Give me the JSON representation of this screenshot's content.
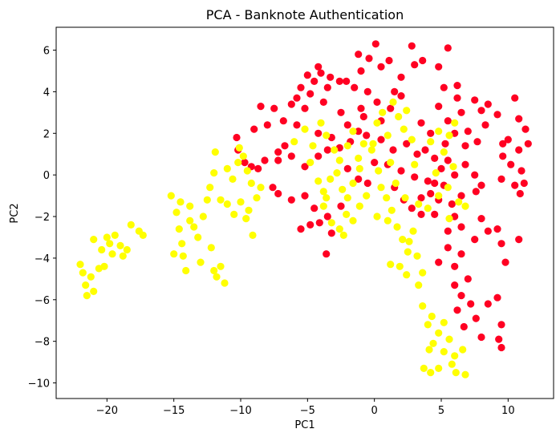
{
  "chart_data": {
    "type": "scatter",
    "title": "PCA - Banknote Authentication",
    "xlabel": "PC1",
    "ylabel": "PC2",
    "xlim": [
      -23.8,
      13.4
    ],
    "ylim": [
      -10.75,
      7.1
    ],
    "xticks": [
      -20,
      -15,
      -10,
      -5,
      0,
      5,
      10
    ],
    "yticks": [
      -10,
      -8,
      -6,
      -4,
      -2,
      0,
      2,
      4,
      6
    ],
    "grid": false,
    "legend": "none",
    "colors": {
      "class_0": "#ff0022",
      "class_1": "#ffff00"
    },
    "series": [
      {
        "color": "#ff0022",
        "points": [
          [
            -5.5,
            4.2
          ],
          [
            -5,
            4.8
          ],
          [
            -4.5,
            4.5
          ],
          [
            -4,
            4.9
          ],
          [
            -3.5,
            4.2
          ],
          [
            -5.8,
            3.7
          ],
          [
            -4.8,
            3.9
          ],
          [
            -3.8,
            3.5
          ],
          [
            -4.2,
            5.2
          ],
          [
            -3.3,
            4.7
          ],
          [
            -5.2,
            3.2
          ],
          [
            -6.2,
            3.4
          ],
          [
            -7.5,
            3.2
          ],
          [
            -8.5,
            3.3
          ],
          [
            -2.6,
            4.5
          ],
          [
            -2.1,
            4.5
          ],
          [
            -1.2,
            5.8
          ],
          [
            -0.4,
            5.6
          ],
          [
            -1,
            5
          ],
          [
            0.5,
            5.2
          ],
          [
            1.1,
            5.5
          ],
          [
            2.8,
            6.2
          ],
          [
            3.6,
            5.5
          ],
          [
            5.5,
            6.1
          ],
          [
            4.8,
            5.2
          ],
          [
            3,
            5.3
          ],
          [
            2,
            4.7
          ],
          [
            1.5,
            4
          ],
          [
            -1.5,
            4.2
          ],
          [
            -0.5,
            4
          ],
          [
            -1,
            3.2
          ],
          [
            0.2,
            3.5
          ],
          [
            -0.8,
            2.8
          ],
          [
            0.5,
            2.6
          ],
          [
            -2.5,
            3
          ],
          [
            0.1,
            6.3
          ],
          [
            5.2,
            4.2
          ],
          [
            6.2,
            4.3
          ],
          [
            7.5,
            3.6
          ],
          [
            8,
            3.1
          ],
          [
            9.2,
            2.9
          ],
          [
            8.5,
            3.4
          ],
          [
            6.5,
            3
          ],
          [
            5.5,
            2.6
          ],
          [
            6,
            2
          ],
          [
            7,
            2.1
          ],
          [
            7.7,
            1.6
          ],
          [
            6.8,
            1.4
          ],
          [
            5.3,
            1.5
          ],
          [
            8.3,
            2.4
          ],
          [
            4.8,
            3.3
          ],
          [
            10.5,
            3.7
          ],
          [
            9.6,
            1.5
          ],
          [
            9.6,
            0.9
          ],
          [
            10.2,
            0.5
          ],
          [
            10.8,
            1.2
          ],
          [
            11.5,
            1.5
          ],
          [
            11,
            0.2
          ],
          [
            10.5,
            -0.5
          ],
          [
            9.5,
            -0.2
          ],
          [
            11.2,
            -0.4
          ],
          [
            10,
            1.7
          ],
          [
            11.3,
            2.2
          ],
          [
            10.8,
            2.7
          ],
          [
            10.9,
            -0.9
          ],
          [
            4.5,
            0.8
          ],
          [
            5.5,
            0.7
          ],
          [
            6,
            0
          ],
          [
            6.8,
            0.5
          ],
          [
            7.5,
            0
          ],
          [
            8,
            -0.5
          ],
          [
            6.5,
            -1
          ],
          [
            5.2,
            -0.5
          ],
          [
            5.8,
            -1.4
          ],
          [
            7.6,
            -0.8
          ],
          [
            4.5,
            -0.4
          ],
          [
            6,
            -2
          ],
          [
            5.5,
            -2.7
          ],
          [
            6.5,
            -2.5
          ],
          [
            8,
            -2.1
          ],
          [
            8.5,
            -2.7
          ],
          [
            9.2,
            -2.6
          ],
          [
            7.5,
            -3.1
          ],
          [
            9.5,
            -3.3
          ],
          [
            6.5,
            -3.8
          ],
          [
            5.5,
            -3.5
          ],
          [
            6,
            -4.4
          ],
          [
            4.8,
            -4.2
          ],
          [
            9.8,
            -4.2
          ],
          [
            10.8,
            -3.1
          ],
          [
            6,
            -5.3
          ],
          [
            6.5,
            -5.8
          ],
          [
            7,
            -5
          ],
          [
            6.2,
            -6.5
          ],
          [
            7.2,
            -6.2
          ],
          [
            7.6,
            -6.9
          ],
          [
            6.7,
            -7.3
          ],
          [
            8,
            -7.8
          ],
          [
            9.3,
            -7.9
          ],
          [
            9.5,
            -8.3
          ],
          [
            8.5,
            -6.2
          ],
          [
            9.2,
            -5.9
          ],
          [
            9.5,
            -7.2
          ],
          [
            -2,
            2.4
          ],
          [
            -1.2,
            2.1
          ],
          [
            -3.2,
            1.8
          ],
          [
            -4.2,
            2
          ],
          [
            -5.8,
            2.4
          ],
          [
            -6.8,
            2.6
          ],
          [
            -8,
            2.4
          ],
          [
            -9,
            2.2
          ],
          [
            -10.3,
            1.8
          ],
          [
            -10.2,
            1.2
          ],
          [
            -9.7,
            0.6
          ],
          [
            -9.2,
            0.4
          ],
          [
            -8.7,
            0.3
          ],
          [
            -8.2,
            0.7
          ],
          [
            -7.2,
            1.1
          ],
          [
            -6.7,
            1.4
          ],
          [
            -6.2,
            0.9
          ],
          [
            -7.2,
            0.7
          ],
          [
            -5.2,
            0.4
          ],
          [
            -4.2,
            0.9
          ],
          [
            -3.5,
            1.2
          ],
          [
            -2.6,
            1.3
          ],
          [
            -1.8,
            1.6
          ],
          [
            -0.6,
            1.9
          ],
          [
            0.5,
            1.7
          ],
          [
            1.4,
            1.2
          ],
          [
            2.4,
            1.5
          ],
          [
            3.2,
            1
          ],
          [
            -2,
            0.3
          ],
          [
            -1.2,
            -0.2
          ],
          [
            0,
            0.6
          ],
          [
            1,
            0.5
          ],
          [
            2,
            0.2
          ],
          [
            3,
            -0.1
          ],
          [
            4,
            -0.3
          ],
          [
            -0.5,
            -0.4
          ],
          [
            1.5,
            -0.6
          ],
          [
            -7.2,
            -0.9
          ],
          [
            -6.2,
            -1.2
          ],
          [
            -5.2,
            -1
          ],
          [
            -4.5,
            -1.6
          ],
          [
            -7.6,
            -0.6
          ],
          [
            -5.5,
            -2.6
          ],
          [
            -4.8,
            -2.4
          ],
          [
            -4.1,
            -2.3
          ],
          [
            -3.5,
            -2
          ],
          [
            -3.2,
            -2.8
          ],
          [
            -3.6,
            -3.8
          ],
          [
            -2.5,
            -1.5
          ],
          [
            2.8,
            -1.6
          ],
          [
            3.5,
            -1.1
          ],
          [
            4.2,
            -0.9
          ],
          [
            3.5,
            -1.9
          ],
          [
            4.8,
            -1.2
          ],
          [
            4.5,
            -1.9
          ],
          [
            2.2,
            -1.2
          ],
          [
            5,
            0.3
          ],
          [
            3.8,
            1.2
          ],
          [
            2,
            3.8
          ],
          [
            1.2,
            3.2
          ],
          [
            3.5,
            2.5
          ],
          [
            4.2,
            2
          ],
          [
            6.2,
            3.7
          ]
        ]
      },
      {
        "color": "#ffff00",
        "points": [
          [
            -22,
            -4.3
          ],
          [
            -21.8,
            -4.7
          ],
          [
            -21.6,
            -5.3
          ],
          [
            -21.2,
            -4.9
          ],
          [
            -21,
            -5.6
          ],
          [
            -20.6,
            -4.5
          ],
          [
            -20.4,
            -3.6
          ],
          [
            -20.2,
            -4.4
          ],
          [
            -20,
            -3
          ],
          [
            -19.8,
            -3.3
          ],
          [
            -19.6,
            -3.8
          ],
          [
            -19.4,
            -2.9
          ],
          [
            -19,
            -3.4
          ],
          [
            -18.8,
            -3.9
          ],
          [
            -18.5,
            -3.6
          ],
          [
            -18.2,
            -2.4
          ],
          [
            -17.6,
            -2.7
          ],
          [
            -17.3,
            -2.9
          ],
          [
            -21.5,
            -5.8
          ],
          [
            -21,
            -3.1
          ],
          [
            -15.2,
            -1
          ],
          [
            -14.8,
            -1.8
          ],
          [
            -14.6,
            -2.6
          ],
          [
            -14.4,
            -3.3
          ],
          [
            -14.3,
            -3.9
          ],
          [
            -14.1,
            -4.6
          ],
          [
            -13.8,
            -1.5
          ],
          [
            -13.5,
            -2.5
          ],
          [
            -13.2,
            -3
          ],
          [
            -12.8,
            -2
          ],
          [
            -12.5,
            -1.2
          ],
          [
            -12.2,
            -3.5
          ],
          [
            -12,
            -4.6
          ],
          [
            -11.8,
            -4.9
          ],
          [
            -11.5,
            -4.4
          ],
          [
            -11.2,
            -5.2
          ],
          [
            -11,
            -1.4
          ],
          [
            -10.5,
            -1.9
          ],
          [
            -10,
            -1.3
          ],
          [
            -9.6,
            -2.1
          ],
          [
            -9.4,
            -1.7
          ],
          [
            -9.1,
            -2.9
          ],
          [
            -15,
            -3.8
          ],
          [
            -13,
            -4.2
          ],
          [
            -14.5,
            -1.3
          ],
          [
            -13.8,
            -2.2
          ],
          [
            -12.3,
            -0.6
          ],
          [
            -12,
            0.1
          ],
          [
            -11.5,
            -1.2
          ],
          [
            -11,
            0.3
          ],
          [
            -10.6,
            -0.2
          ],
          [
            -10.2,
            0.6
          ],
          [
            -9.8,
            0.9
          ],
          [
            -9.5,
            0.2
          ],
          [
            -9.2,
            -0.4
          ],
          [
            -8.8,
            -1.1
          ],
          [
            -8.5,
            -0.6
          ],
          [
            -11.9,
            1.1
          ],
          [
            -10.1,
            1.3
          ],
          [
            -6,
            1.6
          ],
          [
            -5.2,
            2.2
          ],
          [
            -4.6,
            1.4
          ],
          [
            -4,
            2.5
          ],
          [
            -3.6,
            1.9
          ],
          [
            -3,
            1.2
          ],
          [
            -2.6,
            0.7
          ],
          [
            -2,
            1.4
          ],
          [
            -1.6,
            2.1
          ],
          [
            -1.2,
            0.8
          ],
          [
            -0.8,
            1.5
          ],
          [
            -0.2,
            1.2
          ],
          [
            0.2,
            2.5
          ],
          [
            0.6,
            3
          ],
          [
            1,
            1.9
          ],
          [
            1.4,
            3.5
          ],
          [
            1.8,
            2.8
          ],
          [
            2.2,
            2.2
          ],
          [
            2.4,
            3.1
          ],
          [
            2.8,
            1.7
          ],
          [
            3,
            0.5
          ],
          [
            -0.1,
            1.5
          ],
          [
            0.3,
            0.2
          ],
          [
            1.2,
            0.6
          ],
          [
            -4.8,
            0.6
          ],
          [
            -4.2,
            -0.3
          ],
          [
            -3.8,
            -0.8
          ],
          [
            -3.3,
            -0.2
          ],
          [
            -2.8,
            0.1
          ],
          [
            -2.4,
            -0.7
          ],
          [
            -2,
            -1.1
          ],
          [
            -1.6,
            -0.4
          ],
          [
            -1.1,
            0.3
          ],
          [
            -3.8,
            -1.5
          ],
          [
            -3.2,
            -2.3
          ],
          [
            -2.6,
            -2.6
          ],
          [
            -2.1,
            -1.9
          ],
          [
            -1.6,
            -2.2
          ],
          [
            -1.1,
            -1.5
          ],
          [
            -0.6,
            -1
          ],
          [
            -3.6,
            -1.1
          ],
          [
            -2.3,
            -2.9
          ],
          [
            0.5,
            -0.6
          ],
          [
            0.9,
            -1.1
          ],
          [
            1.3,
            -1.7
          ],
          [
            1.7,
            -2.5
          ],
          [
            2.1,
            -3.1
          ],
          [
            2.5,
            -3.7
          ],
          [
            2.9,
            -2.7
          ],
          [
            3.3,
            -1.4
          ],
          [
            2.3,
            -1.1
          ],
          [
            1.6,
            -0.4
          ],
          [
            0.2,
            -2
          ],
          [
            1,
            -2.2
          ],
          [
            1.2,
            -4.3
          ],
          [
            1.9,
            -4.4
          ],
          [
            2.6,
            -3.2
          ],
          [
            3.2,
            -3.9
          ],
          [
            2.4,
            -4.8
          ],
          [
            3.6,
            -4.7
          ],
          [
            3.3,
            -5.3
          ],
          [
            3.6,
            -6.3
          ],
          [
            4,
            -7.2
          ],
          [
            4.4,
            -8.1
          ],
          [
            4.8,
            -7.6
          ],
          [
            5.2,
            -8.5
          ],
          [
            5.6,
            -7.9
          ],
          [
            6,
            -8.7
          ],
          [
            6.6,
            -8.4
          ],
          [
            6.8,
            -9.6
          ],
          [
            5.8,
            -9.1
          ],
          [
            4.8,
            -9.3
          ],
          [
            4.2,
            -9.5
          ],
          [
            3.7,
            -9.3
          ],
          [
            4.1,
            -8.4
          ],
          [
            4.3,
            -6.8
          ],
          [
            6.1,
            -9.5
          ],
          [
            5.2,
            -7.1
          ],
          [
            4.2,
            1.6
          ],
          [
            4.8,
            2.1
          ],
          [
            5.2,
            1.1
          ],
          [
            4.6,
            0.1
          ],
          [
            5.5,
            -0.6
          ],
          [
            6.3,
            -1.3
          ],
          [
            6.8,
            -1.5
          ],
          [
            5.9,
            0.4
          ],
          [
            4,
            -1.6
          ],
          [
            5.6,
            1.9
          ],
          [
            6,
            2.5
          ],
          [
            5.6,
            -2.1
          ],
          [
            4.8,
            -1
          ]
        ]
      }
    ]
  }
}
